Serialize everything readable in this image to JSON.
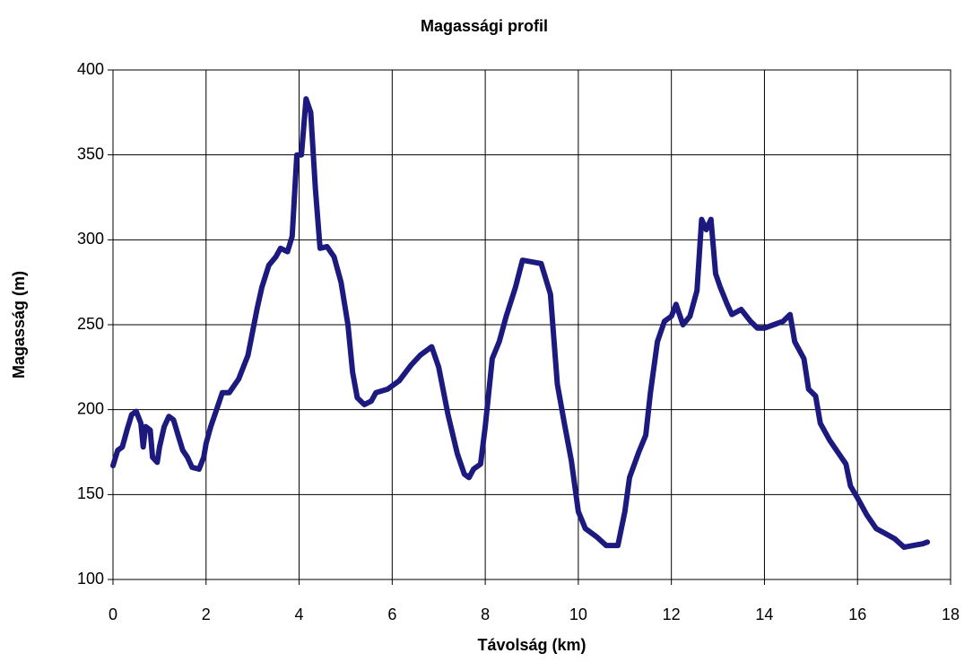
{
  "chart_data": {
    "type": "line",
    "title": "Magassági profil",
    "x_label": "Távolság (km)",
    "y_label": "Magasság (m)",
    "x": [
      0,
      0.1,
      0.2,
      0.3,
      0.4,
      0.5,
      0.6,
      0.65,
      0.7,
      0.8,
      0.85,
      0.95,
      1.0,
      1.1,
      1.2,
      1.3,
      1.4,
      1.5,
      1.6,
      1.7,
      1.85,
      1.95,
      2.0,
      2.1,
      2.2,
      2.35,
      2.5,
      2.7,
      2.9,
      3.1,
      3.2,
      3.35,
      3.5,
      3.6,
      3.75,
      3.85,
      3.95,
      4.05,
      4.15,
      4.25,
      4.35,
      4.45,
      4.6,
      4.75,
      4.9,
      5.05,
      5.15,
      5.25,
      5.4,
      5.55,
      5.65,
      5.9,
      6.15,
      6.4,
      6.6,
      6.85,
      7.0,
      7.2,
      7.4,
      7.55,
      7.65,
      7.75,
      7.9,
      8.0,
      8.15,
      8.3,
      8.45,
      8.65,
      8.8,
      9.0,
      9.2,
      9.4,
      9.55,
      9.7,
      9.85,
      10.0,
      10.15,
      10.4,
      10.6,
      10.85,
      11.0,
      11.1,
      11.3,
      11.45,
      11.55,
      11.7,
      11.85,
      12.0,
      12.1,
      12.25,
      12.4,
      12.55,
      12.65,
      12.75,
      12.85,
      12.95,
      13.05,
      13.2,
      13.3,
      13.5,
      13.7,
      13.85,
      14.0,
      14.2,
      14.4,
      14.55,
      14.65,
      14.85,
      14.95,
      15.1,
      15.2,
      15.4,
      15.6,
      15.75,
      15.85,
      16.0,
      16.2,
      16.4,
      16.6,
      16.8,
      17.0,
      17.2,
      17.4,
      17.5
    ],
    "series": [
      {
        "name": "Magasság",
        "color": "#1c1a7e",
        "values": [
          167,
          176,
          178,
          188,
          197,
          199,
          192,
          178,
          190,
          188,
          172,
          169,
          178,
          190,
          196,
          194,
          185,
          176,
          172,
          166,
          165,
          172,
          180,
          190,
          198,
          210,
          210,
          218,
          232,
          260,
          272,
          285,
          290,
          295,
          293,
          302,
          350,
          350,
          383,
          375,
          330,
          295,
          296,
          290,
          275,
          250,
          222,
          207,
          203,
          205,
          210,
          212,
          217,
          226,
          232,
          237,
          225,
          197,
          174,
          162,
          160,
          165,
          168,
          190,
          230,
          240,
          255,
          272,
          288,
          287,
          286,
          268,
          215,
          192,
          170,
          140,
          130,
          125,
          120,
          120,
          140,
          160,
          175,
          185,
          210,
          240,
          252,
          255,
          262,
          250,
          255,
          270,
          312,
          306,
          312,
          280,
          272,
          262,
          256,
          259,
          252,
          248,
          248,
          250,
          252,
          256,
          240,
          230,
          212,
          208,
          192,
          182,
          174,
          168,
          155,
          148,
          138,
          130,
          127,
          124,
          119,
          120,
          121,
          122
        ]
      }
    ],
    "xlim": [
      0,
      18
    ],
    "xticks": [
      0,
      2,
      4,
      6,
      8,
      10,
      12,
      14,
      16,
      18
    ],
    "ylim": [
      100,
      400
    ],
    "yticks": [
      100,
      150,
      200,
      250,
      300,
      350,
      400
    ],
    "grid": true
  }
}
